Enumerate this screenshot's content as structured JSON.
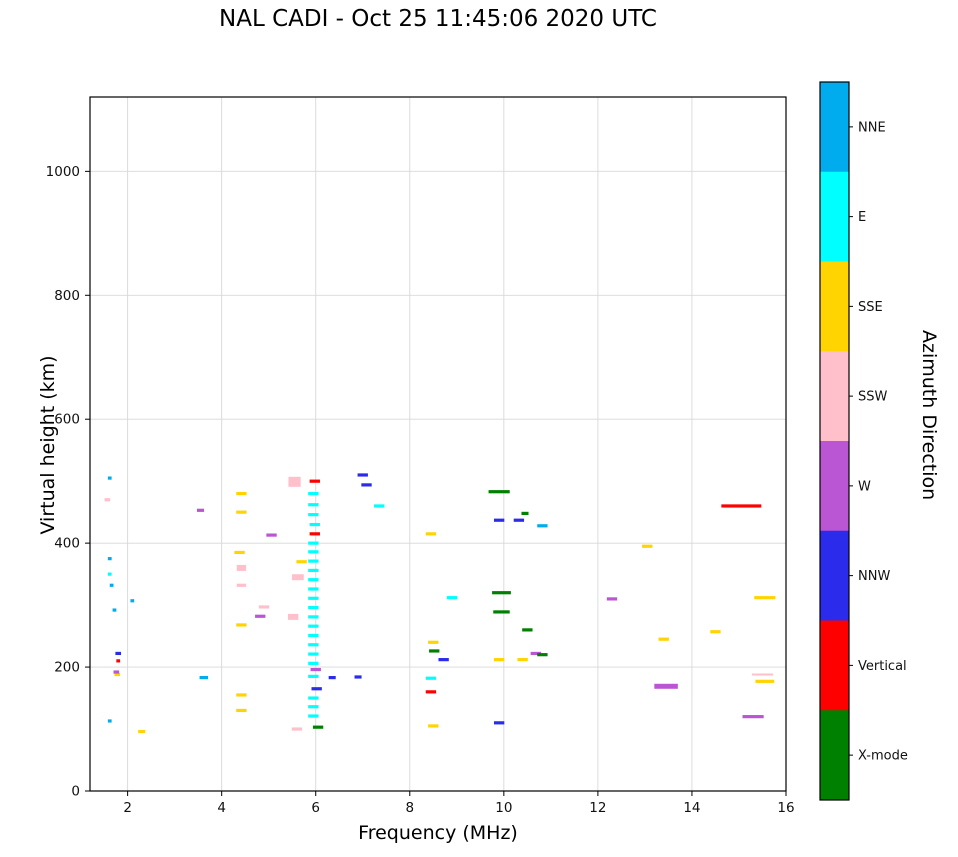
{
  "chart_data": {
    "type": "scatter",
    "title": "NAL CADI - Oct 25 11:45:06 2020 UTC",
    "xlabel": "Frequency (MHz)",
    "ylabel": "Virtual height (km)",
    "xlim": [
      1.2,
      16
    ],
    "ylim": [
      0,
      1120
    ],
    "xticks": [
      2,
      4,
      6,
      8,
      10,
      12,
      14,
      16
    ],
    "yticks": [
      0,
      200,
      400,
      600,
      800,
      1000
    ],
    "grid": true,
    "marker": "hline",
    "legend_position": "right-colorbar",
    "colorbar": {
      "label": "Azimuth Direction",
      "categories": [
        {
          "name": "NNE",
          "color": "#00ACEE"
        },
        {
          "name": "E",
          "color": "#00FFFF"
        },
        {
          "name": "SSE",
          "color": "#FFD400"
        },
        {
          "name": "SSW",
          "color": "#FFC0CB"
        },
        {
          "name": "W",
          "color": "#BA55D3"
        },
        {
          "name": "NNW",
          "color": "#2B2BEB"
        },
        {
          "name": "Vertical",
          "color": "#FF0000"
        },
        {
          "name": "X-mode",
          "color": "#008000"
        }
      ]
    },
    "series": [
      {
        "name": "NNE",
        "points": [
          [
            1.62,
            505,
            0.08
          ],
          [
            1.62,
            375,
            0.08
          ],
          [
            1.66,
            332,
            0.08
          ],
          [
            1.72,
            292,
            0.08
          ],
          [
            2.1,
            307,
            0.08
          ],
          [
            1.62,
            113,
            0.08
          ],
          [
            3.62,
            183,
            0.18
          ],
          [
            10.82,
            428
          ]
        ]
      },
      {
        "name": "E",
        "points": [
          [
            1.62,
            350,
            0.08
          ],
          [
            5.95,
            480
          ],
          [
            5.95,
            462
          ],
          [
            5.95,
            446
          ],
          [
            5.98,
            430
          ],
          [
            5.95,
            400
          ],
          [
            5.95,
            386
          ],
          [
            5.95,
            371
          ],
          [
            5.95,
            356
          ],
          [
            5.95,
            341
          ],
          [
            5.95,
            326
          ],
          [
            5.95,
            311
          ],
          [
            5.95,
            296
          ],
          [
            5.95,
            281
          ],
          [
            5.95,
            266
          ],
          [
            5.95,
            251
          ],
          [
            5.95,
            236
          ],
          [
            5.95,
            221
          ],
          [
            5.95,
            206
          ],
          [
            5.95,
            185
          ],
          [
            5.95,
            150
          ],
          [
            5.95,
            136
          ],
          [
            5.95,
            121
          ],
          [
            7.35,
            460
          ],
          [
            8.9,
            312
          ],
          [
            8.45,
            182
          ]
        ]
      },
      {
        "name": "SSE",
        "points": [
          [
            1.78,
            188,
            0.12
          ],
          [
            2.3,
            96,
            0.15
          ],
          [
            4.42,
            480
          ],
          [
            4.42,
            450
          ],
          [
            4.38,
            385
          ],
          [
            4.42,
            268
          ],
          [
            4.42,
            155
          ],
          [
            4.42,
            130
          ],
          [
            5.7,
            370
          ],
          [
            8.45,
            415
          ],
          [
            8.5,
            240
          ],
          [
            8.5,
            105
          ],
          [
            9.9,
            212
          ],
          [
            10.4,
            212
          ],
          [
            13.05,
            395
          ],
          [
            13.4,
            245
          ],
          [
            14.5,
            257
          ],
          [
            15.55,
            312,
            0.45
          ],
          [
            15.55,
            177,
            0.4
          ]
        ]
      },
      {
        "name": "SSW",
        "points": [
          [
            1.57,
            470,
            0.12
          ],
          [
            4.42,
            360,
            0.2,
            6
          ],
          [
            4.42,
            332,
            0.2
          ],
          [
            4.9,
            297
          ],
          [
            5.55,
            499,
            0.26,
            10
          ],
          [
            5.52,
            281,
            0.22,
            6
          ],
          [
            5.62,
            345,
            0.25,
            6
          ],
          [
            5.6,
            100
          ],
          [
            15.5,
            188,
            0.45,
            2
          ]
        ]
      },
      {
        "name": "W",
        "points": [
          [
            1.76,
            192,
            0.12
          ],
          [
            3.55,
            453,
            0.15
          ],
          [
            4.82,
            282
          ],
          [
            5.06,
            413
          ],
          [
            6.0,
            196
          ],
          [
            10.68,
            222
          ],
          [
            12.3,
            310
          ],
          [
            13.45,
            169,
            0.5,
            5
          ],
          [
            15.3,
            120,
            0.45
          ]
        ]
      },
      {
        "name": "NNW",
        "points": [
          [
            1.8,
            222,
            0.12
          ],
          [
            6.02,
            165
          ],
          [
            6.35,
            183,
            0.15
          ],
          [
            6.9,
            184,
            0.15
          ],
          [
            7.0,
            510
          ],
          [
            7.08,
            494
          ],
          [
            8.72,
            212
          ],
          [
            9.9,
            437
          ],
          [
            10.32,
            437
          ],
          [
            9.9,
            110
          ]
        ]
      },
      {
        "name": "Vertical",
        "points": [
          [
            1.8,
            210,
            0.08
          ],
          [
            5.98,
            500
          ],
          [
            5.98,
            415
          ],
          [
            8.45,
            160
          ],
          [
            15.05,
            460,
            0.85
          ]
        ]
      },
      {
        "name": "X-mode",
        "points": [
          [
            6.05,
            103
          ],
          [
            8.52,
            226
          ],
          [
            9.9,
            483,
            0.45
          ],
          [
            9.95,
            320,
            0.4
          ],
          [
            9.95,
            289,
            0.35
          ],
          [
            10.45,
            448,
            0.15
          ],
          [
            10.5,
            260
          ],
          [
            10.82,
            220
          ]
        ]
      }
    ]
  }
}
